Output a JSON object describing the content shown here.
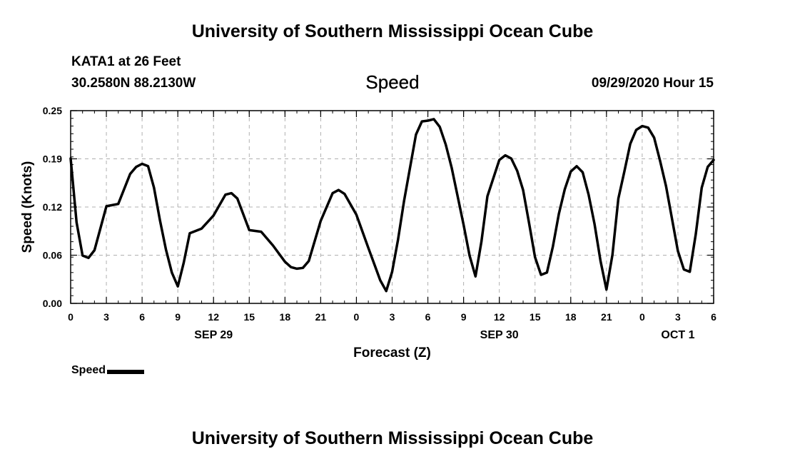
{
  "header": {
    "title": "University of Southern Mississippi Ocean Cube",
    "station": "KATA1 at 26 Feet",
    "coords": "30.2580N 88.2130W",
    "variable": "Speed",
    "datetime": "09/29/2020 Hour 15"
  },
  "footer": {
    "title": "University of Southern Mississippi Ocean Cube"
  },
  "legend": {
    "label": "Speed"
  },
  "chart_data": {
    "type": "line",
    "xlabel": "Forecast (Z)",
    "ylabel": "Speed (Knots)",
    "xlim": [
      0,
      54
    ],
    "ylim": [
      0,
      0.25
    ],
    "yticks": [
      "0.00",
      "0.06",
      "0.12",
      "0.19",
      "0.25"
    ],
    "ytick_values": [
      0,
      0.0625,
      0.125,
      0.1875,
      0.25
    ],
    "xticks": [
      "0",
      "3",
      "6",
      "9",
      "12",
      "15",
      "18",
      "21",
      "0",
      "3",
      "6",
      "9",
      "12",
      "15",
      "18",
      "21",
      "0",
      "3",
      "6"
    ],
    "day_labels": [
      {
        "text": "SEP 29",
        "hour": 12
      },
      {
        "text": "SEP 30",
        "hour": 36
      },
      {
        "text": "OCT 1",
        "hour": 51
      }
    ],
    "grid": true,
    "legend_position": "bottom-left",
    "line_color": "#000000",
    "series": [
      {
        "name": "Speed",
        "x": [
          0,
          0.5,
          1,
          1.5,
          2,
          3,
          4,
          5,
          5.5,
          6,
          6.5,
          7,
          7.5,
          8,
          8.5,
          9,
          9.5,
          10,
          11,
          12,
          13,
          13.5,
          14,
          15,
          16,
          17,
          18,
          18.5,
          19,
          19.5,
          20,
          21,
          22,
          22.5,
          23,
          24,
          25,
          26,
          26.5,
          27,
          27.5,
          28,
          29,
          29.5,
          30,
          30.5,
          31,
          31.5,
          32,
          33,
          33.5,
          34,
          34.5,
          35,
          36,
          36.5,
          37,
          37.5,
          38,
          38.5,
          39,
          39.5,
          40,
          40.5,
          41,
          41.5,
          42,
          42.5,
          43,
          43.5,
          44,
          44.5,
          45,
          45.5,
          46,
          46.5,
          47,
          47.5,
          48,
          48.5,
          49,
          49.5,
          50,
          50.5,
          51,
          51.5,
          52,
          52.5,
          53,
          53.5,
          54
        ],
        "y": [
          0.188,
          0.105,
          0.062,
          0.059,
          0.069,
          0.126,
          0.129,
          0.168,
          0.177,
          0.181,
          0.178,
          0.15,
          0.108,
          0.07,
          0.04,
          0.022,
          0.053,
          0.091,
          0.097,
          0.114,
          0.141,
          0.143,
          0.136,
          0.095,
          0.093,
          0.075,
          0.054,
          0.047,
          0.045,
          0.046,
          0.055,
          0.107,
          0.143,
          0.147,
          0.142,
          0.115,
          0.072,
          0.03,
          0.016,
          0.041,
          0.083,
          0.133,
          0.219,
          0.236,
          0.237,
          0.239,
          0.229,
          0.206,
          0.176,
          0.102,
          0.062,
          0.035,
          0.08,
          0.139,
          0.186,
          0.192,
          0.188,
          0.172,
          0.147,
          0.104,
          0.06,
          0.037,
          0.04,
          0.074,
          0.116,
          0.148,
          0.171,
          0.178,
          0.17,
          0.141,
          0.103,
          0.055,
          0.018,
          0.063,
          0.136,
          0.171,
          0.207,
          0.225,
          0.23,
          0.228,
          0.215,
          0.185,
          0.152,
          0.11,
          0.068,
          0.044,
          0.041,
          0.09,
          0.15,
          0.177,
          0.186
        ]
      }
    ]
  }
}
